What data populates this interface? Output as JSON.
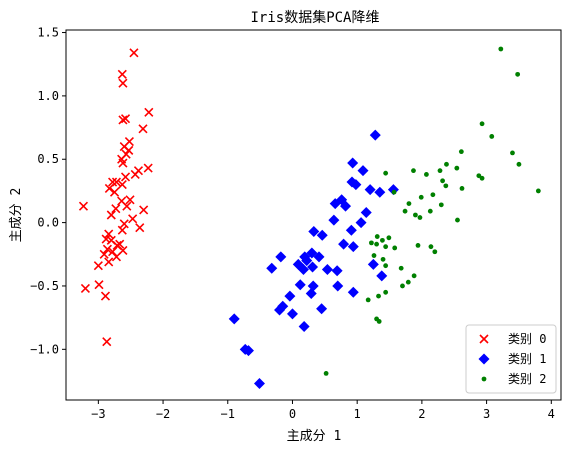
{
  "chart_data": {
    "type": "scatter",
    "title": "Iris数据集PCA降维",
    "xlabel": "主成分 1",
    "ylabel": "主成分 2",
    "xlim": [
      -3.5,
      4.15
    ],
    "ylim": [
      -1.4,
      1.52
    ],
    "xticks": [
      -3,
      -2,
      -1,
      0,
      1,
      2,
      3,
      4
    ],
    "yticks": [
      -1.0,
      -0.5,
      0.0,
      0.5,
      1.0,
      1.5
    ],
    "xtick_labels": [
      "−3",
      "−2",
      "−1",
      "0",
      "1",
      "2",
      "3",
      "4"
    ],
    "ytick_labels": [
      "−1.0",
      "−0.5",
      "0.0",
      "0.5",
      "1.0",
      "1.5"
    ],
    "grid": false,
    "legend_position": "lower-right",
    "series": [
      {
        "name": "类别 0",
        "marker": "x",
        "color": "#ff0000",
        "points": [
          [
            -2.45,
            1.34
          ],
          [
            -2.63,
            1.17
          ],
          [
            -2.62,
            1.1
          ],
          [
            -2.58,
            0.82
          ],
          [
            -2.62,
            0.81
          ],
          [
            -2.22,
            0.87
          ],
          [
            -2.31,
            0.74
          ],
          [
            -2.52,
            0.64
          ],
          [
            -2.6,
            0.6
          ],
          [
            -2.53,
            0.57
          ],
          [
            -2.57,
            0.54
          ],
          [
            -2.64,
            0.5
          ],
          [
            -2.62,
            0.47
          ],
          [
            -2.23,
            0.43
          ],
          [
            -2.38,
            0.41
          ],
          [
            -2.43,
            0.38
          ],
          [
            -2.58,
            0.36
          ],
          [
            -2.78,
            0.32
          ],
          [
            -2.72,
            0.32
          ],
          [
            -2.63,
            0.3
          ],
          [
            -2.83,
            0.27
          ],
          [
            -2.75,
            0.24
          ],
          [
            -2.51,
            0.18
          ],
          [
            -2.64,
            0.17
          ],
          [
            -2.56,
            0.13
          ],
          [
            -2.3,
            0.1
          ],
          [
            -2.73,
            0.11
          ],
          [
            -2.8,
            0.06
          ],
          [
            -2.47,
            0.03
          ],
          [
            -2.6,
            -0.01
          ],
          [
            -2.36,
            -0.04
          ],
          [
            -2.63,
            -0.06
          ],
          [
            -2.84,
            -0.09
          ],
          [
            -2.88,
            -0.13
          ],
          [
            -2.8,
            -0.14
          ],
          [
            -2.67,
            -0.17
          ],
          [
            -2.71,
            -0.18
          ],
          [
            -2.86,
            -0.21
          ],
          [
            -2.62,
            -0.22
          ],
          [
            -2.78,
            -0.23
          ],
          [
            -2.91,
            -0.25
          ],
          [
            -2.72,
            -0.27
          ],
          [
            -2.84,
            -0.31
          ],
          [
            -3.0,
            -0.34
          ],
          [
            -3.23,
            0.13
          ],
          [
            -3.2,
            -0.52
          ],
          [
            -2.99,
            -0.49
          ],
          [
            -2.89,
            -0.58
          ],
          [
            -2.87,
            -0.94
          ]
        ]
      },
      {
        "name": "类别 1",
        "marker": "diamond",
        "color": "#0000ff",
        "points": [
          [
            1.28,
            0.69
          ],
          [
            0.93,
            0.47
          ],
          [
            1.09,
            0.41
          ],
          [
            0.92,
            0.32
          ],
          [
            0.98,
            0.3
          ],
          [
            1.2,
            0.26
          ],
          [
            1.56,
            0.26
          ],
          [
            1.35,
            0.24
          ],
          [
            0.76,
            0.18
          ],
          [
            0.82,
            0.13
          ],
          [
            0.66,
            0.15
          ],
          [
            1.14,
            0.08
          ],
          [
            0.64,
            0.02
          ],
          [
            1.06,
            0.0
          ],
          [
            0.91,
            -0.06
          ],
          [
            0.33,
            -0.07
          ],
          [
            0.46,
            -0.1
          ],
          [
            0.79,
            -0.17
          ],
          [
            0.94,
            -0.19
          ],
          [
            0.3,
            -0.24
          ],
          [
            0.19,
            -0.27
          ],
          [
            0.41,
            -0.27
          ],
          [
            0.22,
            -0.3
          ],
          [
            0.09,
            -0.33
          ],
          [
            0.31,
            -0.35
          ],
          [
            0.17,
            -0.37
          ],
          [
            -0.32,
            -0.36
          ],
          [
            -0.18,
            -0.27
          ],
          [
            0.54,
            -0.37
          ],
          [
            0.69,
            -0.38
          ],
          [
            1.25,
            -0.33
          ],
          [
            1.38,
            -0.42
          ],
          [
            0.7,
            -0.5
          ],
          [
            0.32,
            -0.5
          ],
          [
            0.12,
            -0.49
          ],
          [
            0.29,
            -0.56
          ],
          [
            0.94,
            -0.55
          ],
          [
            -0.04,
            -0.58
          ],
          [
            -0.15,
            -0.66
          ],
          [
            -0.2,
            -0.69
          ],
          [
            0.0,
            -0.72
          ],
          [
            0.45,
            -0.68
          ],
          [
            0.18,
            -0.82
          ],
          [
            -0.9,
            -0.76
          ],
          [
            -0.73,
            -1.0
          ],
          [
            -0.68,
            -1.01
          ],
          [
            -0.51,
            -1.27
          ]
        ]
      },
      {
        "name": "类别 2",
        "marker": "circle",
        "color": "#008000",
        "points": [
          [
            3.22,
            1.37
          ],
          [
            3.48,
            1.17
          ],
          [
            2.93,
            0.78
          ],
          [
            3.08,
            0.68
          ],
          [
            3.4,
            0.55
          ],
          [
            3.5,
            0.46
          ],
          [
            2.61,
            0.56
          ],
          [
            2.38,
            0.46
          ],
          [
            2.28,
            0.41
          ],
          [
            2.54,
            0.43
          ],
          [
            1.87,
            0.41
          ],
          [
            1.44,
            0.39
          ],
          [
            2.07,
            0.38
          ],
          [
            2.88,
            0.37
          ],
          [
            2.93,
            0.35
          ],
          [
            2.32,
            0.33
          ],
          [
            2.37,
            0.29
          ],
          [
            2.62,
            0.27
          ],
          [
            3.8,
            0.25
          ],
          [
            2.17,
            0.22
          ],
          [
            1.57,
            0.24
          ],
          [
            1.99,
            0.2
          ],
          [
            2.3,
            0.14
          ],
          [
            1.8,
            0.15
          ],
          [
            1.74,
            0.09
          ],
          [
            2.13,
            0.09
          ],
          [
            1.97,
            0.04
          ],
          [
            1.9,
            0.06
          ],
          [
            2.55,
            0.02
          ],
          [
            1.31,
            -0.11
          ],
          [
            1.49,
            -0.12
          ],
          [
            1.39,
            -0.14
          ],
          [
            1.22,
            -0.16
          ],
          [
            1.3,
            -0.17
          ],
          [
            1.44,
            -0.19
          ],
          [
            1.58,
            -0.2
          ],
          [
            1.94,
            -0.18
          ],
          [
            2.14,
            -0.19
          ],
          [
            2.2,
            -0.23
          ],
          [
            1.26,
            -0.26
          ],
          [
            1.4,
            -0.29
          ],
          [
            1.44,
            -0.34
          ],
          [
            1.68,
            -0.36
          ],
          [
            1.88,
            -0.42
          ],
          [
            1.79,
            -0.47
          ],
          [
            1.7,
            -0.5
          ],
          [
            1.44,
            -0.55
          ],
          [
            1.33,
            -0.58
          ],
          [
            1.17,
            -0.61
          ],
          [
            1.3,
            -0.76
          ],
          [
            1.34,
            -0.78
          ],
          [
            0.52,
            -1.19
          ]
        ]
      }
    ]
  }
}
